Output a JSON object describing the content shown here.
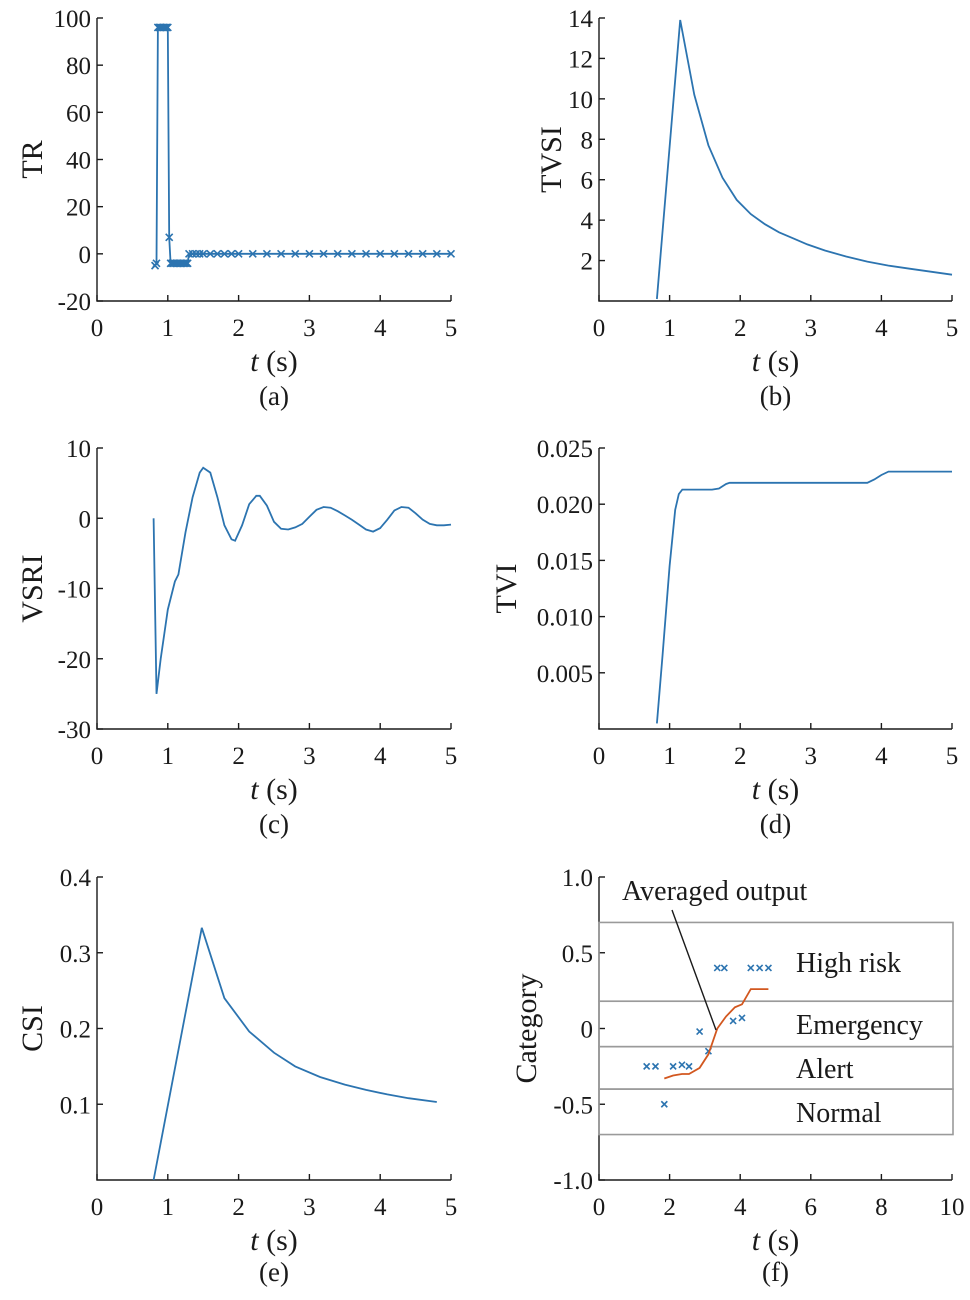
{
  "chart_data": [
    {
      "id": "a",
      "type": "line",
      "caption": "(a)",
      "ylabel": "TR",
      "xlabel_italic": "t",
      "xlabel_unit": " (s)",
      "xlim": [
        0,
        5
      ],
      "ylim": [
        -20,
        100
      ],
      "xticks": [
        0,
        1,
        2,
        3,
        4,
        5
      ],
      "yticks": [
        -20,
        0,
        20,
        40,
        60,
        80,
        100
      ],
      "markers": true,
      "series": [
        {
          "x": [
            0.82,
            0.84,
            0.86,
            0.88,
            0.9,
            0.92,
            0.94,
            0.96,
            0.98,
            1.0,
            1.02,
            1.04,
            1.06,
            1.08,
            1.1,
            1.12,
            1.14,
            1.16,
            1.18,
            1.2,
            1.22,
            1.24,
            1.26,
            1.28,
            1.3,
            1.35,
            1.4,
            1.45,
            1.5,
            1.6,
            1.7,
            1.8,
            1.9,
            2.0,
            2.2,
            2.4,
            2.6,
            2.8,
            3.0,
            3.2,
            3.4,
            3.6,
            3.8,
            4.0,
            4.2,
            4.4,
            4.6,
            4.8,
            5.0
          ],
          "y": [
            -5,
            -4,
            96,
            96,
            96,
            96,
            96,
            96,
            96,
            96,
            7,
            -4,
            -4,
            -4,
            -4,
            -4,
            -4,
            -4,
            -4,
            -4,
            -4,
            -4,
            -4,
            -4,
            0,
            0,
            0,
            0,
            0,
            0,
            0,
            0,
            0,
            0,
            0,
            0,
            0,
            0,
            0,
            0,
            0,
            0,
            0,
            0,
            0,
            0,
            0,
            0,
            0
          ]
        }
      ]
    },
    {
      "id": "b",
      "type": "line",
      "caption": "(b)",
      "ylabel": "TVSI",
      "xlabel_italic": "t",
      "xlabel_unit": " (s)",
      "xlim": [
        0,
        5
      ],
      "ylim": [
        0,
        14
      ],
      "xticks": [
        0,
        1,
        2,
        3,
        4,
        5
      ],
      "yticks": [
        2,
        4,
        6,
        8,
        10,
        12,
        14
      ],
      "series": [
        {
          "x": [
            0.82,
            1.15,
            1.35,
            1.55,
            1.75,
            1.95,
            2.15,
            2.35,
            2.55,
            2.75,
            2.95,
            3.2,
            3.5,
            3.8,
            4.1,
            4.4,
            4.7,
            5.0
          ],
          "y": [
            0.1,
            13.9,
            10.2,
            7.7,
            6.1,
            5.0,
            4.3,
            3.8,
            3.4,
            3.1,
            2.8,
            2.5,
            2.2,
            1.95,
            1.75,
            1.6,
            1.45,
            1.3
          ]
        }
      ]
    },
    {
      "id": "c",
      "type": "line",
      "caption": "(c)",
      "ylabel": "VSRI",
      "xlabel_italic": "t",
      "xlabel_unit": " (s)",
      "xlim": [
        0,
        5
      ],
      "ylim": [
        -30,
        10
      ],
      "xticks": [
        0,
        1,
        2,
        3,
        4,
        5
      ],
      "yticks": [
        -30,
        -20,
        -10,
        0,
        10
      ],
      "series": [
        {
          "x": [
            0.8,
            0.84,
            0.9,
            1.0,
            1.1,
            1.15,
            1.25,
            1.35,
            1.45,
            1.5,
            1.6,
            1.7,
            1.8,
            1.9,
            1.95,
            2.05,
            2.15,
            2.25,
            2.3,
            2.4,
            2.5,
            2.6,
            2.7,
            2.8,
            2.9,
            3.0,
            3.1,
            3.2,
            3.3,
            3.4,
            3.5,
            3.6,
            3.7,
            3.8,
            3.9,
            4.0,
            4.1,
            4.2,
            4.3,
            4.4,
            4.5,
            4.6,
            4.7,
            4.8,
            4.9,
            5.0
          ],
          "y": [
            0,
            -25,
            -20,
            -13,
            -9,
            -8,
            -2,
            3,
            6.5,
            7.2,
            6.5,
            3,
            -1,
            -3,
            -3.2,
            -1,
            2,
            3.2,
            3.2,
            1.8,
            -0.5,
            -1.5,
            -1.6,
            -1.3,
            -0.8,
            0.2,
            1.2,
            1.6,
            1.5,
            1,
            0.4,
            -0.2,
            -0.9,
            -1.6,
            -1.9,
            -1.4,
            -0.2,
            1.1,
            1.6,
            1.5,
            0.7,
            -0.2,
            -0.8,
            -1,
            -1,
            -0.9
          ]
        }
      ]
    },
    {
      "id": "d",
      "type": "line",
      "caption": "(d)",
      "ylabel": "TVI",
      "xlabel_italic": "t",
      "xlabel_unit": " (s)",
      "xlim": [
        0,
        5
      ],
      "ylim": [
        0,
        0.025
      ],
      "xticks": [
        0,
        1,
        2,
        3,
        4,
        5
      ],
      "yticks": [
        0.005,
        0.01,
        0.015,
        0.02,
        0.025
      ],
      "ytick_labels": [
        "0.005",
        "0.010",
        "0.015",
        "0.020",
        "0.025"
      ],
      "series": [
        {
          "x": [
            0.82,
            0.9,
            1.0,
            1.08,
            1.13,
            1.18,
            1.25,
            1.4,
            1.6,
            1.7,
            1.75,
            1.8,
            1.85,
            2.0,
            2.5,
            3.0,
            3.5,
            3.8,
            3.9,
            4.0,
            4.1,
            4.5,
            5.0
          ],
          "y": [
            0.0005,
            0.0065,
            0.0145,
            0.0195,
            0.0209,
            0.0213,
            0.0213,
            0.0213,
            0.0213,
            0.0214,
            0.0216,
            0.0218,
            0.0219,
            0.0219,
            0.0219,
            0.0219,
            0.0219,
            0.0219,
            0.0222,
            0.0226,
            0.0229,
            0.0229,
            0.0229
          ]
        }
      ]
    },
    {
      "id": "e",
      "type": "line",
      "caption": "(e)",
      "ylabel": "CSI",
      "xlabel_italic": "t",
      "xlabel_unit": " (s)",
      "xlim": [
        0,
        5
      ],
      "ylim": [
        0,
        0.4
      ],
      "xticks": [
        0,
        1,
        2,
        3,
        4,
        5
      ],
      "yticks": [
        0.1,
        0.2,
        0.3,
        0.4
      ],
      "ytick_labels": [
        "0.1",
        "0.2",
        "0.3",
        "0.4"
      ],
      "series": [
        {
          "x": [
            0.8,
            1.48,
            1.8,
            2.15,
            2.5,
            2.8,
            3.15,
            3.5,
            3.8,
            4.1,
            4.4,
            4.8
          ],
          "y": [
            0,
            0.333,
            0.24,
            0.196,
            0.168,
            0.15,
            0.136,
            0.126,
            0.119,
            0.113,
            0.108,
            0.103
          ]
        }
      ]
    },
    {
      "id": "f",
      "type": "scatter",
      "caption": "(f)",
      "ylabel": "Category",
      "xlabel_italic": "t",
      "xlabel_unit": " (s)",
      "xlim": [
        0,
        10
      ],
      "ylim": [
        -1,
        1
      ],
      "xticks": [
        0,
        2,
        4,
        6,
        8,
        10
      ],
      "yticks": [
        -1,
        -0.5,
        0,
        0.5,
        1
      ],
      "ytick_labels": [
        "-1.0",
        "-0.5",
        "0",
        "0.5",
        "1.0"
      ],
      "annotation": "Averaged output",
      "bands": [
        {
          "label": "High risk",
          "y_low": 0.18,
          "y_high": 0.7
        },
        {
          "label": "Emergency",
          "y_low": -0.12,
          "y_high": 0.18
        },
        {
          "label": "Alert",
          "y_low": -0.4,
          "y_high": -0.12
        },
        {
          "label": "Normal",
          "y_low": -0.7,
          "y_high": -0.4
        }
      ],
      "scatter": {
        "x": [
          1.35,
          1.6,
          1.85,
          2.1,
          2.35,
          2.55,
          2.85,
          3.1,
          3.35,
          3.55,
          3.8,
          4.05,
          4.3,
          4.55,
          4.8
        ],
        "y": [
          -0.25,
          -0.25,
          -0.5,
          -0.25,
          -0.24,
          -0.25,
          -0.02,
          -0.15,
          0.4,
          0.4,
          0.05,
          0.07,
          0.4,
          0.4,
          0.4
        ]
      },
      "averaged": {
        "x": [
          1.85,
          2.1,
          2.35,
          2.55,
          2.85,
          3.1,
          3.35,
          3.6,
          3.85,
          4.05,
          4.3,
          4.55,
          4.8
        ],
        "y": [
          -0.33,
          -0.31,
          -0.3,
          -0.3,
          -0.26,
          -0.17,
          0.0,
          0.08,
          0.14,
          0.16,
          0.26,
          0.26,
          0.26
        ]
      }
    }
  ]
}
